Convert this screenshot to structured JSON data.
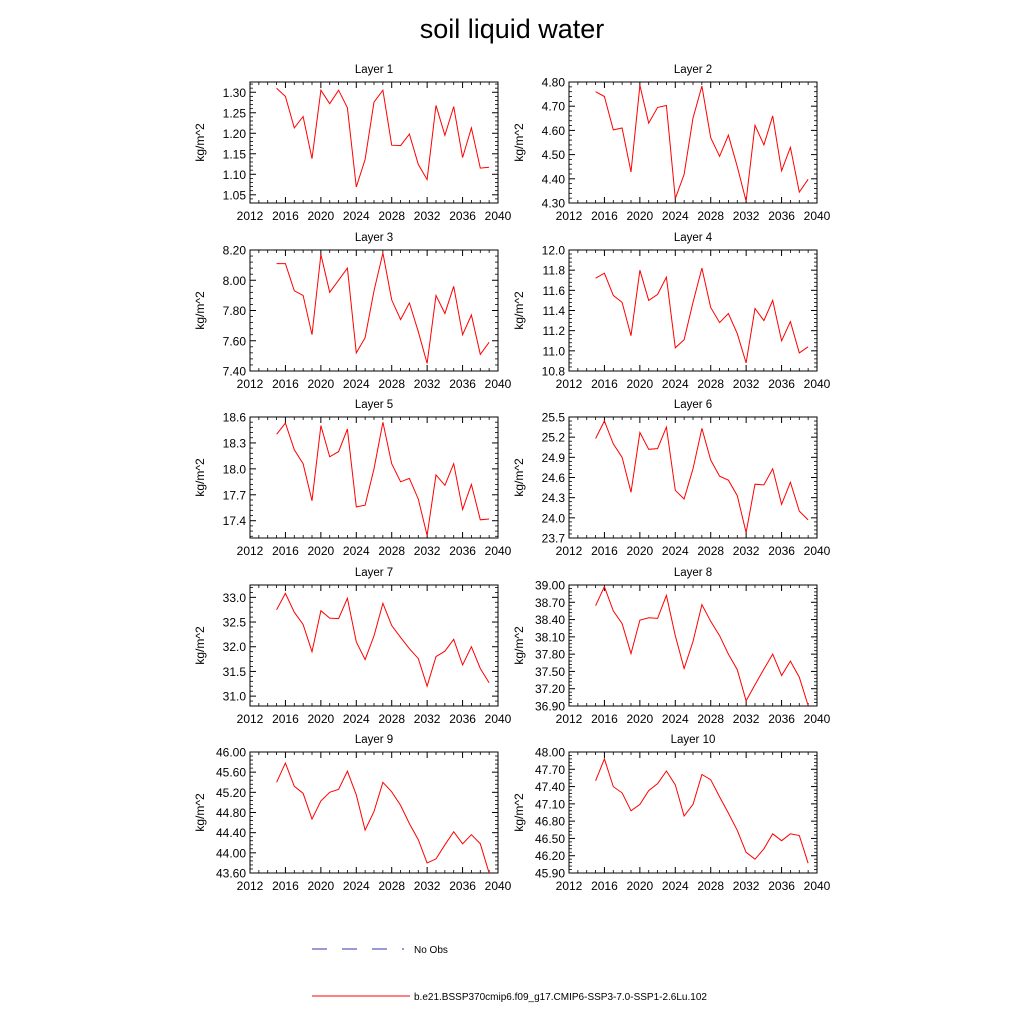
{
  "title": "soil liquid water",
  "legend": {
    "entries": [
      {
        "label": "No Obs",
        "color": "#3333aa",
        "style": "dashed"
      },
      {
        "label": "b.e21.BSSP370cmip6.f09_g17.CMIP6-SSP3-7.0-SSP1-2.6Lu.102",
        "color": "#ff0000",
        "style": "solid"
      }
    ]
  },
  "chart_data": [
    {
      "type": "line",
      "title": "Layer 1",
      "ylabel": "kg/m^2",
      "xlim": [
        2012,
        2040
      ],
      "xticks": [
        "2012",
        "2016",
        "2020",
        "2024",
        "2028",
        "2032",
        "2036",
        "2040"
      ],
      "ylim": [
        1.03,
        1.325
      ],
      "yticks": [
        "1.05",
        "1.10",
        "1.15",
        "1.20",
        "1.25",
        "1.30"
      ],
      "series": [
        {
          "color": "#ff0000",
          "x": [
            2015,
            2016,
            2017,
            2018,
            2019,
            2020,
            2021,
            2022,
            2023,
            2024,
            2025,
            2026,
            2027,
            2028,
            2029,
            2030,
            2031,
            2032,
            2033,
            2034,
            2035,
            2036,
            2037,
            2038,
            2039
          ],
          "values": [
            1.31,
            1.29,
            1.213,
            1.241,
            1.138,
            1.305,
            1.272,
            1.305,
            1.262,
            1.069,
            1.136,
            1.276,
            1.305,
            1.171,
            1.17,
            1.198,
            1.124,
            1.087,
            1.268,
            1.195,
            1.265,
            1.141,
            1.213,
            1.115,
            1.117
          ]
        }
      ]
    },
    {
      "type": "line",
      "title": "Layer 2",
      "ylabel": "kg/m^2",
      "xlim": [
        2012,
        2040
      ],
      "xticks": [
        "2012",
        "2016",
        "2020",
        "2024",
        "2028",
        "2032",
        "2036",
        "2040"
      ],
      "ylim": [
        4.3,
        4.8
      ],
      "yticks": [
        "4.30",
        "4.40",
        "4.50",
        "4.60",
        "4.70",
        "4.80"
      ],
      "series": [
        {
          "color": "#ff0000",
          "x": [
            2015,
            2016,
            2017,
            2018,
            2019,
            2020,
            2021,
            2022,
            2023,
            2024,
            2025,
            2026,
            2027,
            2028,
            2029,
            2030,
            2031,
            2032,
            2033,
            2034,
            2035,
            2036,
            2037,
            2038,
            2039
          ],
          "values": [
            4.76,
            4.74,
            4.602,
            4.61,
            4.428,
            4.786,
            4.63,
            4.695,
            4.703,
            4.318,
            4.418,
            4.651,
            4.783,
            4.57,
            4.493,
            4.58,
            4.45,
            4.308,
            4.621,
            4.54,
            4.66,
            4.433,
            4.53,
            4.345,
            4.398
          ]
        }
      ]
    },
    {
      "type": "line",
      "title": "Layer 3",
      "ylabel": "kg/m^2",
      "xlim": [
        2012,
        2040
      ],
      "xticks": [
        "2012",
        "2016",
        "2020",
        "2024",
        "2028",
        "2032",
        "2036",
        "2040"
      ],
      "ylim": [
        7.4,
        8.2
      ],
      "yticks": [
        "7.40",
        "7.60",
        "7.80",
        "8.00",
        "8.20"
      ],
      "series": [
        {
          "color": "#ff0000",
          "x": [
            2015,
            2016,
            2017,
            2018,
            2019,
            2020,
            2021,
            2022,
            2023,
            2024,
            2025,
            2026,
            2027,
            2028,
            2029,
            2030,
            2031,
            2032,
            2033,
            2034,
            2035,
            2036,
            2037,
            2038,
            2039
          ],
          "values": [
            8.11,
            8.11,
            7.93,
            7.9,
            7.64,
            8.17,
            7.92,
            8.0,
            8.08,
            7.52,
            7.62,
            7.93,
            8.18,
            7.87,
            7.74,
            7.85,
            7.66,
            7.45,
            7.9,
            7.78,
            7.96,
            7.64,
            7.77,
            7.51,
            7.59
          ]
        }
      ]
    },
    {
      "type": "line",
      "title": "Layer 4",
      "ylabel": "kg/m^2",
      "xlim": [
        2012,
        2040
      ],
      "xticks": [
        "2012",
        "2016",
        "2020",
        "2024",
        "2028",
        "2032",
        "2036",
        "2040"
      ],
      "ylim": [
        10.8,
        12.0
      ],
      "yticks": [
        "10.8",
        "11.0",
        "11.2",
        "11.4",
        "11.6",
        "11.8",
        "12.0"
      ],
      "series": [
        {
          "color": "#ff0000",
          "x": [
            2015,
            2016,
            2017,
            2018,
            2019,
            2020,
            2021,
            2022,
            2023,
            2024,
            2025,
            2026,
            2027,
            2028,
            2029,
            2030,
            2031,
            2032,
            2033,
            2034,
            2035,
            2036,
            2037,
            2038,
            2039
          ],
          "values": [
            11.72,
            11.77,
            11.55,
            11.48,
            11.15,
            11.8,
            11.5,
            11.56,
            11.73,
            11.03,
            11.11,
            11.48,
            11.82,
            11.43,
            11.28,
            11.37,
            11.17,
            10.88,
            11.42,
            11.3,
            11.5,
            11.1,
            11.29,
            10.98,
            11.04
          ]
        }
      ]
    },
    {
      "type": "line",
      "title": "Layer 5",
      "ylabel": "kg/m^2",
      "xlim": [
        2012,
        2040
      ],
      "xticks": [
        "2012",
        "2016",
        "2020",
        "2024",
        "2028",
        "2032",
        "2036",
        "2040"
      ],
      "ylim": [
        17.2,
        18.6
      ],
      "yticks": [
        "17.4",
        "17.7",
        "18.0",
        "18.3",
        "18.6"
      ],
      "series": [
        {
          "color": "#ff0000",
          "x": [
            2015,
            2016,
            2017,
            2018,
            2019,
            2020,
            2021,
            2022,
            2023,
            2024,
            2025,
            2026,
            2027,
            2028,
            2029,
            2030,
            2031,
            2032,
            2033,
            2034,
            2035,
            2036,
            2037,
            2038,
            2039
          ],
          "values": [
            18.4,
            18.53,
            18.22,
            18.06,
            17.63,
            18.5,
            18.14,
            18.2,
            18.46,
            17.56,
            17.58,
            18.0,
            18.54,
            18.06,
            17.85,
            17.89,
            17.65,
            17.23,
            17.93,
            17.81,
            18.06,
            17.53,
            17.82,
            17.41,
            17.42
          ]
        }
      ]
    },
    {
      "type": "line",
      "title": "Layer 6",
      "ylabel": "kg/m^2",
      "xlim": [
        2012,
        2040
      ],
      "xticks": [
        "2012",
        "2016",
        "2020",
        "2024",
        "2028",
        "2032",
        "2036",
        "2040"
      ],
      "ylim": [
        23.7,
        25.5
      ],
      "yticks": [
        "23.7",
        "24.0",
        "24.3",
        "24.6",
        "24.9",
        "25.2",
        "25.5"
      ],
      "series": [
        {
          "color": "#ff0000",
          "x": [
            2015,
            2016,
            2017,
            2018,
            2019,
            2020,
            2021,
            2022,
            2023,
            2024,
            2025,
            2026,
            2027,
            2028,
            2029,
            2030,
            2031,
            2032,
            2033,
            2034,
            2035,
            2036,
            2037,
            2038,
            2039
          ],
          "values": [
            25.18,
            25.44,
            25.1,
            24.9,
            24.38,
            25.27,
            25.02,
            25.03,
            25.35,
            24.41,
            24.28,
            24.73,
            25.33,
            24.86,
            24.62,
            24.56,
            24.33,
            23.78,
            24.5,
            24.49,
            24.73,
            24.2,
            24.53,
            24.1,
            23.97
          ]
        }
      ]
    },
    {
      "type": "line",
      "title": "Layer 7",
      "ylabel": "kg/m^2",
      "xlim": [
        2012,
        2040
      ],
      "xticks": [
        "2012",
        "2016",
        "2020",
        "2024",
        "2028",
        "2032",
        "2036",
        "2040"
      ],
      "ylim": [
        30.8,
        33.25
      ],
      "yticks": [
        "31.0",
        "31.5",
        "32.0",
        "32.5",
        "33.0"
      ],
      "series": [
        {
          "color": "#ff0000",
          "x": [
            2015,
            2016,
            2017,
            2018,
            2019,
            2020,
            2021,
            2022,
            2023,
            2024,
            2025,
            2026,
            2027,
            2028,
            2029,
            2030,
            2031,
            2032,
            2033,
            2034,
            2035,
            2036,
            2037,
            2038,
            2039
          ],
          "values": [
            32.75,
            33.08,
            32.7,
            32.45,
            31.9,
            32.73,
            32.58,
            32.57,
            32.98,
            32.1,
            31.74,
            32.22,
            32.88,
            32.43,
            32.19,
            31.96,
            31.76,
            31.2,
            31.8,
            31.91,
            32.15,
            31.63,
            32.0,
            31.56,
            31.27
          ]
        }
      ]
    },
    {
      "type": "line",
      "title": "Layer 8",
      "ylabel": "kg/m^2",
      "xlim": [
        2012,
        2040
      ],
      "xticks": [
        "2012",
        "2016",
        "2020",
        "2024",
        "2028",
        "2032",
        "2036",
        "2040"
      ],
      "ylim": [
        36.9,
        39.0
      ],
      "yticks": [
        "36.90",
        "37.20",
        "37.50",
        "37.80",
        "38.10",
        "38.40",
        "38.70",
        "39.00"
      ],
      "series": [
        {
          "color": "#ff0000",
          "x": [
            2015,
            2016,
            2017,
            2018,
            2019,
            2020,
            2021,
            2022,
            2023,
            2024,
            2025,
            2026,
            2027,
            2028,
            2029,
            2030,
            2031,
            2032,
            2033,
            2034,
            2035,
            2036,
            2037,
            2038,
            2039
          ],
          "values": [
            38.64,
            38.97,
            38.55,
            38.33,
            37.81,
            38.39,
            38.43,
            38.42,
            38.82,
            38.12,
            37.55,
            38.02,
            38.66,
            38.37,
            38.12,
            37.8,
            37.53,
            36.99,
            37.27,
            37.54,
            37.8,
            37.43,
            37.68,
            37.4,
            36.91
          ]
        }
      ]
    },
    {
      "type": "line",
      "title": "Layer 9",
      "ylabel": "kg/m^2",
      "xlim": [
        2012,
        2040
      ],
      "xticks": [
        "2012",
        "2016",
        "2020",
        "2024",
        "2028",
        "2032",
        "2036",
        "2040"
      ],
      "ylim": [
        43.6,
        46.0
      ],
      "yticks": [
        "43.60",
        "44.00",
        "44.40",
        "44.80",
        "45.20",
        "45.60",
        "46.00"
      ],
      "series": [
        {
          "color": "#ff0000",
          "x": [
            2015,
            2016,
            2017,
            2018,
            2019,
            2020,
            2021,
            2022,
            2023,
            2024,
            2025,
            2026,
            2027,
            2028,
            2029,
            2030,
            2031,
            2032,
            2033,
            2034,
            2035,
            2036,
            2037,
            2038,
            2039
          ],
          "values": [
            45.4,
            45.78,
            45.32,
            45.18,
            44.67,
            45.03,
            45.2,
            45.26,
            45.62,
            45.15,
            44.45,
            44.82,
            45.4,
            45.21,
            44.94,
            44.58,
            44.26,
            43.8,
            43.88,
            44.16,
            44.42,
            44.18,
            44.36,
            44.18,
            43.6
          ]
        }
      ]
    },
    {
      "type": "line",
      "title": "Layer 10",
      "ylabel": "kg/m^2",
      "xlim": [
        2012,
        2040
      ],
      "xticks": [
        "2012",
        "2016",
        "2020",
        "2024",
        "2028",
        "2032",
        "2036",
        "2040"
      ],
      "ylim": [
        45.9,
        48.0
      ],
      "yticks": [
        "45.90",
        "46.20",
        "46.50",
        "46.80",
        "47.10",
        "47.40",
        "47.70",
        "48.00"
      ],
      "series": [
        {
          "color": "#ff0000",
          "x": [
            2015,
            2016,
            2017,
            2018,
            2019,
            2020,
            2021,
            2022,
            2023,
            2024,
            2025,
            2026,
            2027,
            2028,
            2029,
            2030,
            2031,
            2032,
            2033,
            2034,
            2035,
            2036,
            2037,
            2038,
            2039
          ],
          "values": [
            47.5,
            47.88,
            47.4,
            47.29,
            46.98,
            47.09,
            47.33,
            47.45,
            47.67,
            47.43,
            46.89,
            47.09,
            47.61,
            47.52,
            47.22,
            46.94,
            46.64,
            46.26,
            46.14,
            46.32,
            46.58,
            46.46,
            46.58,
            46.55,
            46.07
          ]
        }
      ]
    }
  ]
}
